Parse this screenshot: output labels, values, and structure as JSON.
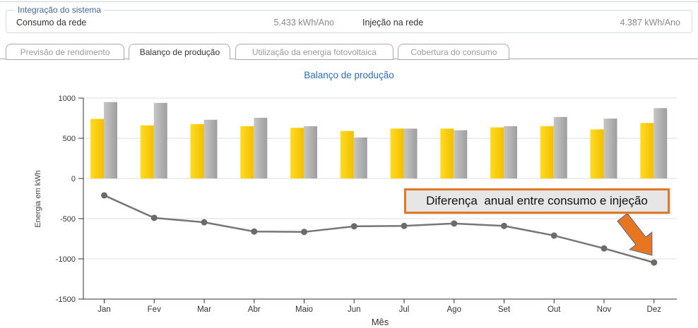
{
  "system_integration": {
    "legend": "Integração do sistema",
    "rows": [
      {
        "label": "Consumo da rede",
        "value": "5.433 kWh/Ano"
      },
      {
        "label": "Injeção na rede",
        "value": "4.387 kWh/Ano"
      }
    ]
  },
  "tabs": [
    {
      "label": "Previsão de rendimento",
      "active": false
    },
    {
      "label": "Balanço de produção",
      "active": true
    },
    {
      "label": "Utilização da energia fotovoltaica",
      "active": false
    },
    {
      "label": "Cobertura do consumo",
      "active": false
    }
  ],
  "chart_data": {
    "type": "bar",
    "title": "Balanço de produção",
    "xlabel": "Mês",
    "ylabel": "Energia em kWh",
    "ylim": [
      -1500,
      1000
    ],
    "yticks": [
      1000,
      500,
      0,
      -500,
      -1000,
      -1500
    ],
    "grid": true,
    "legend_position": "none",
    "categories": [
      "Jan",
      "Fev",
      "Mar",
      "Abr",
      "Maio",
      "Jun",
      "Jul",
      "Ago",
      "Set",
      "Out",
      "Nov",
      "Dez"
    ],
    "series": [
      {
        "name": "bar-yellow",
        "type": "bar",
        "color_from": "#ffdb21",
        "color_to": "#f2bf00",
        "values": [
          740,
          660,
          675,
          650,
          630,
          590,
          620,
          620,
          635,
          650,
          610,
          690
        ]
      },
      {
        "name": "bar-gray",
        "type": "bar",
        "color_from": "#c6c6c6",
        "color_to": "#9e9e9e",
        "values": [
          950,
          940,
          730,
          755,
          650,
          510,
          620,
          600,
          650,
          765,
          745,
          875
        ]
      },
      {
        "name": "difference-line",
        "type": "line",
        "color": "#767676",
        "values": [
          -210,
          -490,
          -545,
          -660,
          -665,
          -595,
          -590,
          -560,
          -590,
          -710,
          -870,
          -1046
        ]
      }
    ],
    "annotation": {
      "text": "Diferença  anual entre consumo e injeção",
      "border_color": "#e0782a",
      "fill": "#e6e6e6",
      "arrow_color": "#e8761f"
    }
  }
}
